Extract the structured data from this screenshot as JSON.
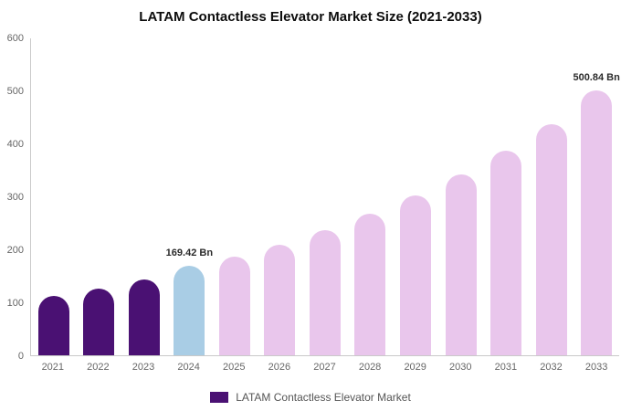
{
  "title": "LATAM Contactless Elevator Market Size (2021-2033)",
  "legend": {
    "label": "LATAM Contactless Elevator Market",
    "swatch_color": "#4a1173"
  },
  "colors": {
    "historical": "#4a1173",
    "current": "#a9cde5",
    "forecast": "#e9c6ec",
    "axis_line": "#c9c9c9",
    "tick_text": "#666666",
    "annotation_text": "#2b2b2b"
  },
  "chart_data": {
    "type": "bar",
    "title": "LATAM Contactless Elevator Market Size (2021-2033)",
    "xlabel": "",
    "ylabel": "",
    "ylim": [
      0,
      600
    ],
    "ytick_step": 100,
    "grid": false,
    "legend_position": "bottom",
    "categories": [
      "2021",
      "2022",
      "2023",
      "2024",
      "2025",
      "2026",
      "2027",
      "2028",
      "2029",
      "2030",
      "2031",
      "2032",
      "2033"
    ],
    "values": [
      112,
      127,
      144,
      169.42,
      186,
      210,
      237,
      268,
      303,
      343,
      388,
      438,
      500.84
    ],
    "bar_colors": [
      "#4a1173",
      "#4a1173",
      "#4a1173",
      "#a9cde5",
      "#e9c6ec",
      "#e9c6ec",
      "#e9c6ec",
      "#e9c6ec",
      "#e9c6ec",
      "#e9c6ec",
      "#e9c6ec",
      "#e9c6ec",
      "#e9c6ec"
    ],
    "annotations": [
      {
        "category": "2024",
        "text": "169.42 Bn"
      },
      {
        "category": "2033",
        "text": "500.84 Bn"
      }
    ],
    "series_name": "LATAM Contactless Elevator Market"
  }
}
